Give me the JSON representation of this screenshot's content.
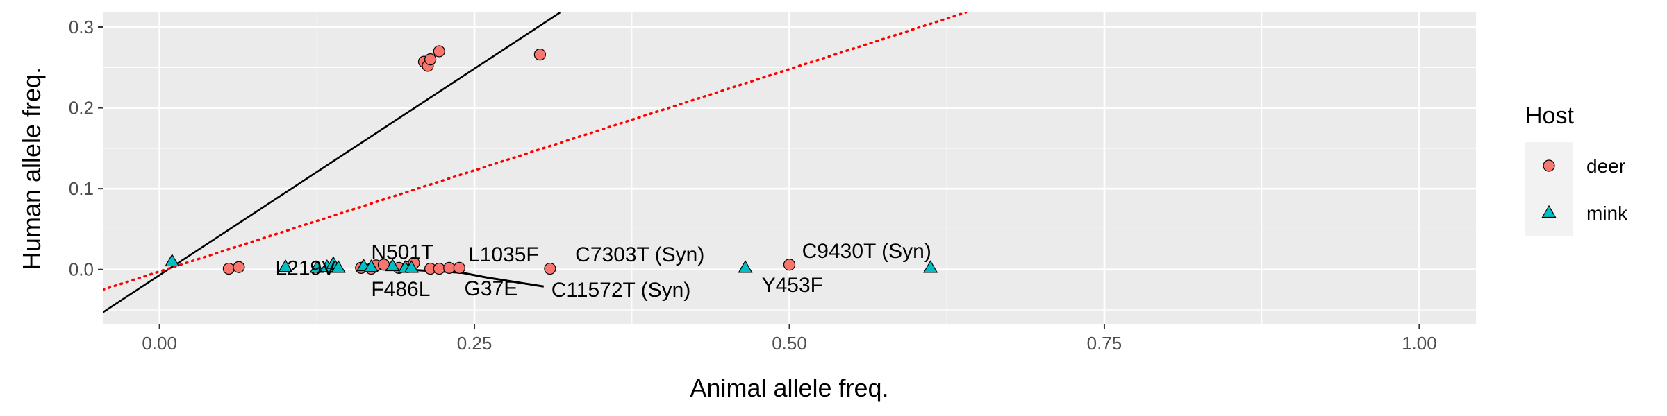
{
  "chart_data": {
    "type": "scatter",
    "title": "",
    "xlabel": "Animal allele freq.",
    "ylabel": "Human allele freq.",
    "xlim": [
      -0.045,
      1.045
    ],
    "ylim": [
      -0.068,
      0.318
    ],
    "xticks": [
      0.0,
      0.25,
      0.5,
      0.75,
      1.0
    ],
    "xtick_labels": [
      "0.00",
      "0.25",
      "0.50",
      "0.75",
      "1.00"
    ],
    "yticks": [
      0.0,
      0.1,
      0.2,
      0.3
    ],
    "ytick_labels": [
      "0.0",
      "0.1",
      "0.2",
      "0.3"
    ],
    "grid": true,
    "legend": {
      "title": "Host",
      "placement": "right",
      "entries": [
        {
          "label": "deer",
          "shape": "circle",
          "color": "#F8766D"
        },
        {
          "label": "mink",
          "shape": "triangle",
          "color": "#00BFC4"
        }
      ]
    },
    "series": [
      {
        "name": "deer",
        "color": "#F8766D",
        "shape": "circle",
        "points": [
          {
            "x": 0.21,
            "y": 0.257
          },
          {
            "x": 0.213,
            "y": 0.252
          },
          {
            "x": 0.215,
            "y": 0.26
          },
          {
            "x": 0.222,
            "y": 0.27
          },
          {
            "x": 0.302,
            "y": 0.266
          },
          {
            "x": 0.055,
            "y": 0.001
          },
          {
            "x": 0.063,
            "y": 0.003
          },
          {
            "x": 0.16,
            "y": 0.002
          },
          {
            "x": 0.168,
            "y": 0.001
          },
          {
            "x": 0.172,
            "y": 0.005
          },
          {
            "x": 0.178,
            "y": 0.006
          },
          {
            "x": 0.19,
            "y": 0.002
          },
          {
            "x": 0.197,
            "y": 0.003
          },
          {
            "x": 0.202,
            "y": 0.008
          },
          {
            "x": 0.215,
            "y": 0.001
          },
          {
            "x": 0.222,
            "y": 0.001
          },
          {
            "x": 0.23,
            "y": 0.002
          },
          {
            "x": 0.238,
            "y": 0.002
          },
          {
            "x": 0.31,
            "y": 0.001
          },
          {
            "x": 0.5,
            "y": 0.006
          }
        ]
      },
      {
        "name": "mink",
        "color": "#00BFC4",
        "shape": "triangle",
        "points": [
          {
            "x": 0.01,
            "y": 0.01
          },
          {
            "x": 0.1,
            "y": 0.003
          },
          {
            "x": 0.125,
            "y": 0.002
          },
          {
            "x": 0.133,
            "y": 0.003
          },
          {
            "x": 0.138,
            "y": 0.007
          },
          {
            "x": 0.142,
            "y": 0.002
          },
          {
            "x": 0.162,
            "y": 0.004
          },
          {
            "x": 0.168,
            "y": 0.003
          },
          {
            "x": 0.185,
            "y": 0.004
          },
          {
            "x": 0.195,
            "y": 0.002
          },
          {
            "x": 0.2,
            "y": 0.002
          },
          {
            "x": 0.465,
            "y": 0.002
          },
          {
            "x": 0.612,
            "y": 0.002
          }
        ]
      }
    ],
    "reference_lines": [
      {
        "type": "solid",
        "color": "#000000",
        "x1": -0.045,
        "y1": -0.053,
        "x2": 0.318,
        "y2": 0.318
      },
      {
        "type": "dotted",
        "color": "#FF0000",
        "x1": -0.045,
        "y1": -0.025,
        "x2": 0.64,
        "y2": 0.318
      }
    ],
    "annotations": [
      {
        "text": "N501T",
        "x": 0.168,
        "y": 0.02,
        "anchor": "start"
      },
      {
        "text": "L1035F",
        "x": 0.245,
        "y": 0.017,
        "anchor": "start"
      },
      {
        "text": "C7303T (Syn)",
        "x": 0.33,
        "y": 0.017,
        "anchor": "start"
      },
      {
        "text": "C9430T (Syn)",
        "x": 0.51,
        "y": 0.021,
        "anchor": "start"
      },
      {
        "text": "L219V",
        "x": 0.092,
        "y": 0.0,
        "anchor": "start"
      },
      {
        "text": "F486L",
        "x": 0.168,
        "y": -0.026,
        "anchor": "start"
      },
      {
        "text": "G37E",
        "x": 0.242,
        "y": -0.025,
        "anchor": "start"
      },
      {
        "text": "C11572T (Syn)",
        "x": 0.311,
        "y": -0.027,
        "anchor": "start"
      },
      {
        "text": "Y453F",
        "x": 0.478,
        "y": -0.021,
        "anchor": "start"
      }
    ],
    "leader_segments": [
      [
        [
          0.195,
          0.0
        ],
        [
          0.24,
          -0.004
        ],
        [
          0.26,
          -0.01
        ],
        [
          0.305,
          -0.021
        ]
      ]
    ]
  }
}
